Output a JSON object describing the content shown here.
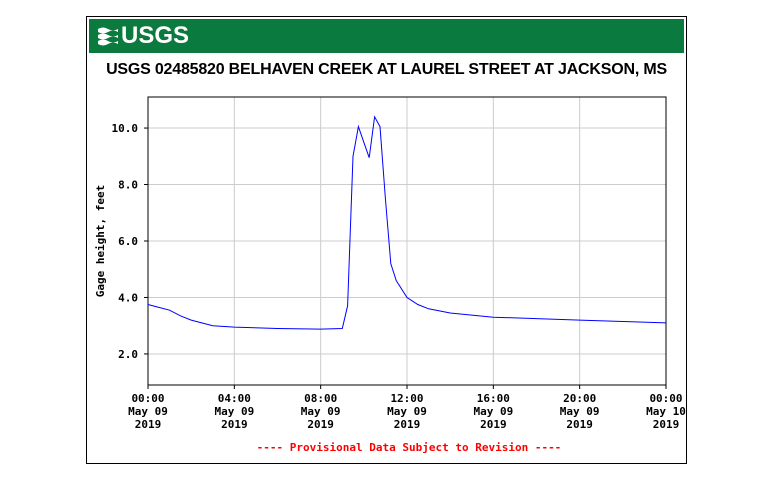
{
  "header": {
    "logo_text": "USGS",
    "title": "USGS 02485820 BELHAVEN CREEK AT LAUREL STREET AT JACKSON, MS"
  },
  "footer": {
    "note": "---- Provisional Data Subject to Revision ----"
  },
  "colors": {
    "banner": "#0a7a3f",
    "series": "#0000ff",
    "note": "#ff0000",
    "grid": "#cccccc"
  },
  "chart_data": {
    "type": "line",
    "title": "USGS 02485820 BELHAVEN CREEK AT LAUREL STREET AT JACKSON, MS",
    "ylabel": "Gage height, feet",
    "xlabel": "",
    "xlim_hours": [
      0,
      24
    ],
    "ylim": [
      0.9,
      11.1
    ],
    "yticks": [
      2.0,
      4.0,
      6.0,
      8.0,
      10.0
    ],
    "ytick_labels": [
      "2.0",
      "4.0",
      "6.0",
      "8.0",
      "10.0"
    ],
    "xticks": [
      {
        "hour": 0,
        "time": "00:00",
        "date": "May 09",
        "year": "2019"
      },
      {
        "hour": 4,
        "time": "04:00",
        "date": "May 09",
        "year": "2019"
      },
      {
        "hour": 8,
        "time": "08:00",
        "date": "May 09",
        "year": "2019"
      },
      {
        "hour": 12,
        "time": "12:00",
        "date": "May 09",
        "year": "2019"
      },
      {
        "hour": 16,
        "time": "16:00",
        "date": "May 09",
        "year": "2019"
      },
      {
        "hour": 20,
        "time": "20:00",
        "date": "May 09",
        "year": "2019"
      },
      {
        "hour": 24,
        "time": "00:00",
        "date": "May 10",
        "year": "2019"
      }
    ],
    "grid": true,
    "series": [
      {
        "x": [
          0,
          0.5,
          1,
          1.5,
          2,
          3,
          4,
          6,
          8,
          9,
          9.25,
          9.5,
          9.75,
          10,
          10.25,
          10.5,
          10.75,
          11,
          11.25,
          11.5,
          12,
          12.5,
          13,
          14,
          16,
          18,
          20,
          22,
          24
        ],
        "y": [
          3.75,
          3.65,
          3.55,
          3.35,
          3.2,
          3.0,
          2.95,
          2.9,
          2.88,
          2.9,
          3.7,
          9.0,
          10.05,
          9.5,
          8.95,
          10.4,
          10.05,
          7.5,
          5.2,
          4.6,
          4.0,
          3.75,
          3.6,
          3.45,
          3.3,
          3.25,
          3.2,
          3.15,
          3.1
        ]
      }
    ]
  }
}
